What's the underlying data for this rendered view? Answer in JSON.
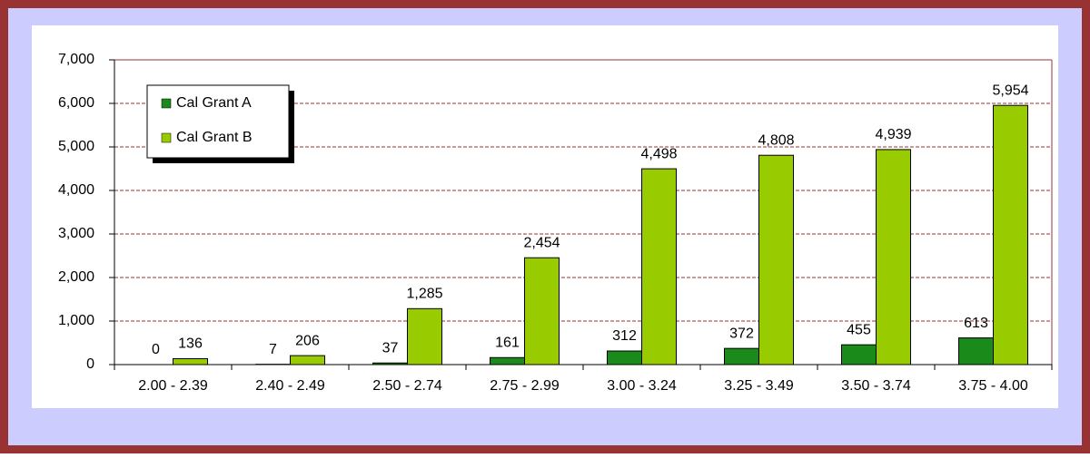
{
  "chart_data": {
    "type": "bar",
    "categories": [
      "2.00 - 2.39",
      "2.40 - 2.49",
      "2.50 - 2.74",
      "2.75 - 2.99",
      "3.00 - 3.24",
      "3.25 - 3.49",
      "3.50 - 3.74",
      "3.75 - 4.00"
    ],
    "series": [
      {
        "name": "Cal Grant A",
        "color": "#1a8a1a",
        "values": [
          0,
          7,
          37,
          161,
          312,
          372,
          455,
          613
        ],
        "value_labels": [
          "0",
          "7",
          "37",
          "161",
          "312",
          "372",
          "455",
          "613"
        ]
      },
      {
        "name": "Cal Grant B",
        "color": "#99cc00",
        "values": [
          136,
          206,
          1285,
          2454,
          4498,
          4808,
          4939,
          5954
        ],
        "value_labels": [
          "136",
          "206",
          "1,285",
          "2,454",
          "4,498",
          "4,808",
          "4,939",
          "5,954"
        ]
      }
    ],
    "ylim": [
      0,
      7000
    ],
    "yticks": [
      0,
      {
        "value": 1000,
        "label": "1,000"
      },
      {
        "value": 2000,
        "label": "2,000"
      },
      {
        "value": 3000,
        "label": "3,000"
      },
      {
        "value": 4000,
        "label": "4,000"
      },
      {
        "value": 5000,
        "label": "5,000"
      },
      {
        "value": 6000,
        "label": "6,000"
      },
      {
        "value": 7000,
        "label": "7,000"
      }
    ],
    "grid": true,
    "legend": "upper left"
  }
}
